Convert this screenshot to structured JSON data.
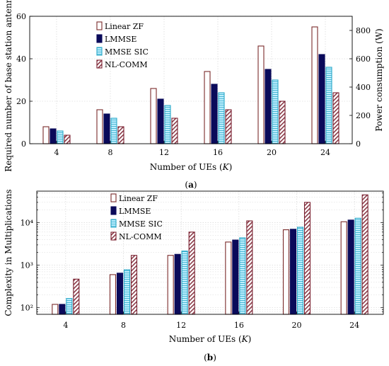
{
  "colors": {
    "linear_zf": "#ffffff",
    "linear_zf_stroke": "#7a2a2a",
    "lmmse": "#0a0a5a",
    "mmse_sic": "#bfefff",
    "mmse_sic_stroke": "#2aa8c8",
    "nl_comm_stroke": "#7a2030"
  },
  "chart_data": [
    {
      "type": "bar",
      "panel_label": "(a)",
      "categories": [
        "4",
        "8",
        "12",
        "16",
        "20",
        "24"
      ],
      "series": [
        {
          "name": "Linear ZF",
          "values": [
            8,
            16,
            26,
            34,
            46,
            55
          ]
        },
        {
          "name": "LMMSE",
          "values": [
            7,
            14,
            21,
            28,
            35,
            42
          ]
        },
        {
          "name": "MMSE SIC",
          "values": [
            6,
            12,
            18,
            24,
            30,
            36
          ]
        },
        {
          "name": "NL-COMM",
          "values": [
            4,
            8,
            12,
            16,
            20,
            24
          ]
        }
      ],
      "xlabel": "Number of UEs (K)",
      "ylabel": "Required number of base station antennas",
      "ylabel_right": "Power consumption (W)",
      "ylim": [
        0,
        60
      ],
      "yticks": [
        "0",
        "20",
        "40",
        "60"
      ],
      "ylim_right": [
        0,
        900
      ],
      "yticks_right": [
        "0",
        "200",
        "400",
        "600",
        "800"
      ],
      "grid": true,
      "legend_position": "top-left"
    },
    {
      "type": "bar",
      "panel_label": "(b)",
      "categories": [
        "4",
        "8",
        "12",
        "16",
        "20",
        "24"
      ],
      "series": [
        {
          "name": "Linear ZF",
          "values": [
            120,
            600,
            1700,
            3500,
            6800,
            10500
          ]
        },
        {
          "name": "LMMSE",
          "values": [
            120,
            650,
            1800,
            3900,
            7000,
            11500
          ]
        },
        {
          "name": "MMSE SIC",
          "values": [
            165,
            780,
            2150,
            4400,
            7800,
            12700
          ]
        },
        {
          "name": "NL-COMM",
          "values": [
            470,
            1700,
            6000,
            11000,
            30000,
            45000
          ]
        }
      ],
      "xlabel": "Number of UEs (K)",
      "ylabel": "Complexity in Multiplications",
      "yscale": "log",
      "ylim": [
        70,
        55000
      ],
      "yticks": [
        "10²",
        "10³",
        "10⁴"
      ],
      "grid": true,
      "legend_position": "top-left"
    }
  ]
}
